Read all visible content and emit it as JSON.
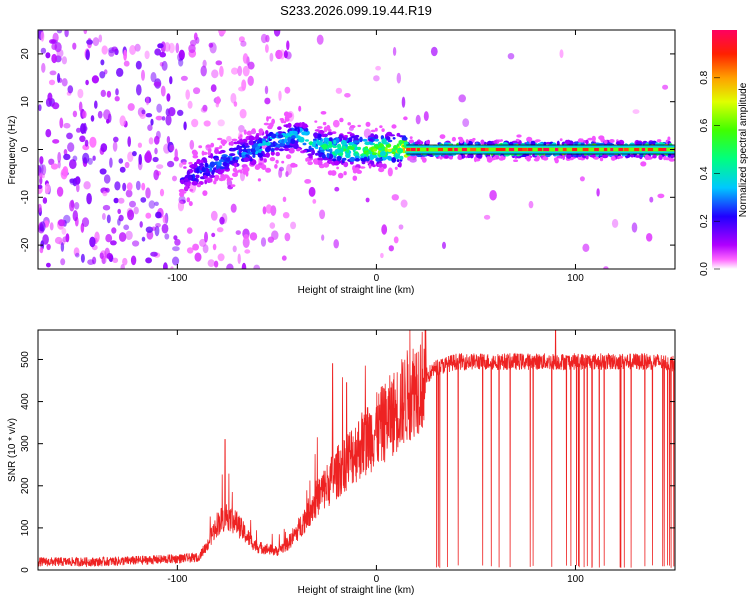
{
  "title": "S233.2026.099.19.44.R19",
  "chart_data": [
    {
      "type": "heatmap",
      "name": "spectrogram",
      "xlabel": "Height of straight line (km)",
      "ylabel": "Frequency (Hz)",
      "xlim": [
        -170,
        150
      ],
      "ylim": [
        -25,
        25
      ],
      "xticks": [
        -100,
        0,
        100
      ],
      "yticks": [
        -20,
        -10,
        0,
        10,
        20
      ],
      "colorbar": {
        "label": "Normalized spectral amplitude",
        "ticks": [
          0.0,
          0.2,
          0.4,
          0.6,
          0.8
        ],
        "range": [
          0,
          1
        ],
        "colormap": [
          "#ffffff",
          "#ff00ff",
          "#8000ff",
          "#0000ff",
          "#00e5ff",
          "#00ff00",
          "#ffff00",
          "#ff8000",
          "#ff0000",
          "#ff0080"
        ]
      },
      "ridge": {
        "x": [
          -95,
          -90,
          -80,
          -70,
          -60,
          -50,
          -40,
          -35,
          -30,
          -20,
          -10,
          0,
          10,
          15,
          150
        ],
        "freq_hz": [
          -6,
          -5,
          -3,
          -1,
          0,
          2,
          3,
          2,
          1,
          0,
          0,
          0,
          0,
          0,
          0
        ],
        "amplitude": [
          0.2,
          0.25,
          0.3,
          0.3,
          0.35,
          0.35,
          0.4,
          0.45,
          0.45,
          0.5,
          0.55,
          0.6,
          0.65,
          0.9,
          0.9
        ]
      }
    },
    {
      "type": "line",
      "name": "snr",
      "xlabel": "Height of straight line (km)",
      "ylabel": "SNR (10 * v/v)",
      "xlim": [
        -170,
        150
      ],
      "ylim": [
        0,
        570
      ],
      "xticks": [
        -100,
        0,
        100
      ],
      "yticks": [
        0,
        100,
        200,
        300,
        400,
        500
      ],
      "line_color": "#ee2222",
      "envelope": {
        "x": [
          -170,
          -140,
          -110,
          -90,
          -85,
          -80,
          -75,
          -70,
          -65,
          -60,
          -50,
          -45,
          -40,
          -35,
          -30,
          -25,
          -20,
          -15,
          -10,
          -5,
          0,
          5,
          10,
          15,
          20,
          25,
          30,
          40,
          60,
          80,
          100,
          120,
          140,
          150
        ],
        "y": [
          15,
          15,
          20,
          25,
          60,
          110,
          130,
          110,
          80,
          55,
          45,
          60,
          90,
          130,
          170,
          200,
          230,
          260,
          285,
          310,
          330,
          355,
          380,
          410,
          440,
          460,
          480,
          495,
          495,
          495,
          495,
          495,
          495,
          490
        ]
      },
      "peaks": [
        {
          "x": -76,
          "y": 310
        },
        {
          "x": -22,
          "y": 490
        },
        {
          "x": -15,
          "y": 445
        },
        {
          "x": 90,
          "y": 570
        }
      ]
    }
  ]
}
